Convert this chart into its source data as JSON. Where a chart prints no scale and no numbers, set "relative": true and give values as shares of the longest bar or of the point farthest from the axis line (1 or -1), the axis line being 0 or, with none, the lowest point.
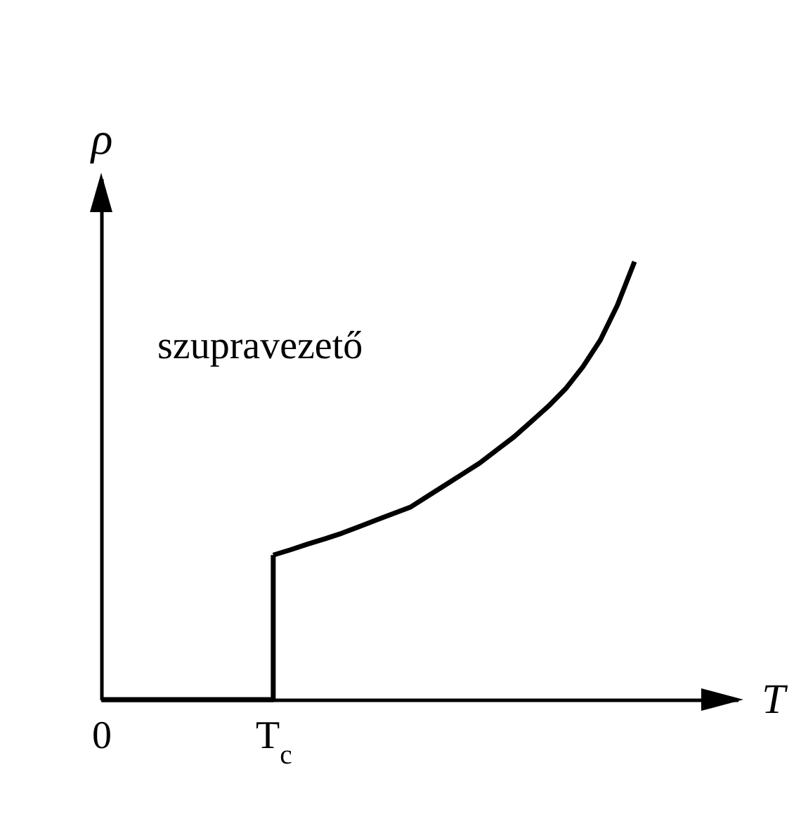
{
  "chart_data": {
    "type": "line",
    "relative": true,
    "xlabel": "T",
    "ylabel": "ρ",
    "annotations": [
      "szupravezető"
    ],
    "categories": [
      "0",
      null,
      null,
      null,
      null,
      null,
      null,
      null,
      null,
      null,
      "T$_{c}$",
      null,
      null,
      null,
      null,
      null,
      null,
      null,
      null,
      null,
      null,
      null,
      null,
      null,
      null,
      null,
      null,
      null,
      null,
      null,
      null,
      null,
      null,
      null,
      null,
      null,
      null,
      null
    ],
    "series": [
      {
        "type": "step",
        "color": "#000000",
        "values": [
          0,
          0,
          0,
          0,
          0,
          0,
          0,
          0,
          0,
          0,
          0.33,
          null,
          null,
          null,
          null,
          null,
          null,
          null,
          null,
          null,
          null,
          null,
          null,
          null,
          null,
          null,
          null,
          null,
          null,
          null,
          null,
          null,
          null,
          null,
          null,
          null,
          null,
          null
        ]
      },
      {
        "color": "#000000",
        "values": [
          null,
          null,
          null,
          null,
          null,
          null,
          null,
          null,
          null,
          null,
          0.33,
          0.342,
          0.355,
          0.367,
          0.38,
          0.395,
          0.41,
          0.425,
          0.44,
          0.465,
          0.49,
          0.515,
          0.54,
          0.57,
          0.6,
          0.635,
          0.67,
          0.71,
          0.76,
          0.82,
          0.9,
          1,
          null,
          null,
          null,
          null,
          null,
          null
        ]
      }
    ],
    "grid": false,
    "marker": "none",
    "line_style": "solid"
  }
}
